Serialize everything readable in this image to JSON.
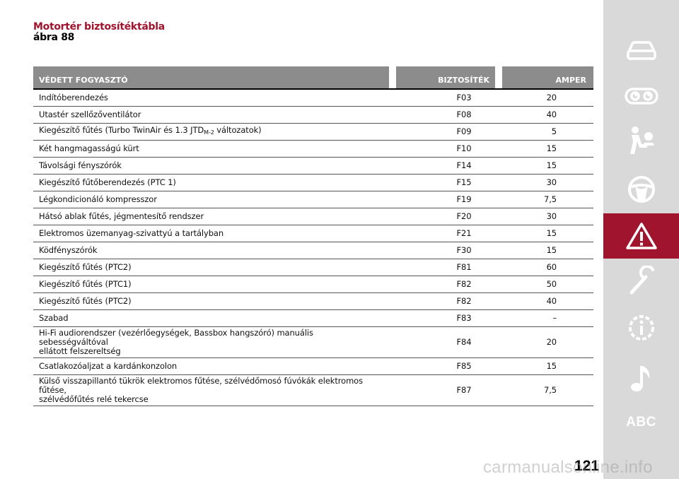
{
  "header": {
    "title": "Motortér biztosítéktábla",
    "subtitle": "ábra 88"
  },
  "table": {
    "columns": [
      "VÉDETT FOGYASZTÓ",
      "BIZTOSÍTÉK",
      "AMPER"
    ],
    "rows": [
      {
        "name": "Indítóberendezés",
        "fuse": "F03",
        "amp": "20"
      },
      {
        "name": "Utastér szellőzőventilátor",
        "fuse": "F08",
        "amp": "40"
      },
      {
        "name": "Kiegészítő fűtés (Turbo TwinAir és 1.3 JTD",
        "name_sub": "M-2",
        "name_after": " változatok)",
        "fuse": "F09",
        "amp": "5"
      },
      {
        "name": "Két hangmagasságú kürt",
        "fuse": "F10",
        "amp": "15"
      },
      {
        "name": "Távolsági fényszórók",
        "fuse": "F14",
        "amp": "15"
      },
      {
        "name": "Kiegészítő fűtőberendezés (PTC 1)",
        "fuse": "F15",
        "amp": "30"
      },
      {
        "name": "Légkondicionáló kompresszor",
        "fuse": "F19",
        "amp": "7,5"
      },
      {
        "name": "Hátsó ablak fűtés, jégmentesítő rendszer",
        "fuse": "F20",
        "amp": "30"
      },
      {
        "name": "Elektromos üzemanyag-szivattyú a tartályban",
        "fuse": "F21",
        "amp": "15"
      },
      {
        "name": "Ködfényszórók",
        "fuse": "F30",
        "amp": "15"
      },
      {
        "name": "Kiegészítő fűtés (PTC2)",
        "fuse": "F81",
        "amp": "60"
      },
      {
        "name": "Kiegészítő fűtés (PTC1)",
        "fuse": "F82",
        "amp": "50"
      },
      {
        "name": "Kiegészítő fűtés (PTC2)",
        "fuse": "F82",
        "amp": "40"
      },
      {
        "name": "Szabad",
        "fuse": "F83",
        "amp": "–"
      },
      {
        "name": "Hi-Fi audiorendszer (vezérlőegységek, Bassbox hangszóró) manuális sebességváltóval",
        "name_line2": "ellátott felszereltség",
        "fuse": "F84",
        "amp": "20"
      },
      {
        "name": "Csatlakozóaljzat a kardánkonzolon",
        "fuse": "F85",
        "amp": "15"
      },
      {
        "name": "Külső visszapillantó tükrök elektromos fűtése, szélvédőmosó fúvókák elektromos fűtése,",
        "name_line2": "szélvédőfűtés relé tekercse",
        "fuse": "F87",
        "amp": "7,5"
      }
    ]
  },
  "sidebar": {
    "items": [
      {
        "icon": "car-icon"
      },
      {
        "icon": "dashboard-gauges-icon"
      },
      {
        "icon": "seat-airbag-icon"
      },
      {
        "icon": "steering-wheel-icon"
      },
      {
        "icon": "warning-triangle-icon",
        "active": true
      },
      {
        "icon": "wrench-icon"
      },
      {
        "icon": "info-gear-icon"
      },
      {
        "icon": "music-note-icon"
      },
      {
        "label": "ABC"
      }
    ],
    "active_color": "#a0142d",
    "background_color": "#d9d9d9"
  },
  "footer": {
    "page_number": "121",
    "watermark": "carmanualsonline.info"
  }
}
